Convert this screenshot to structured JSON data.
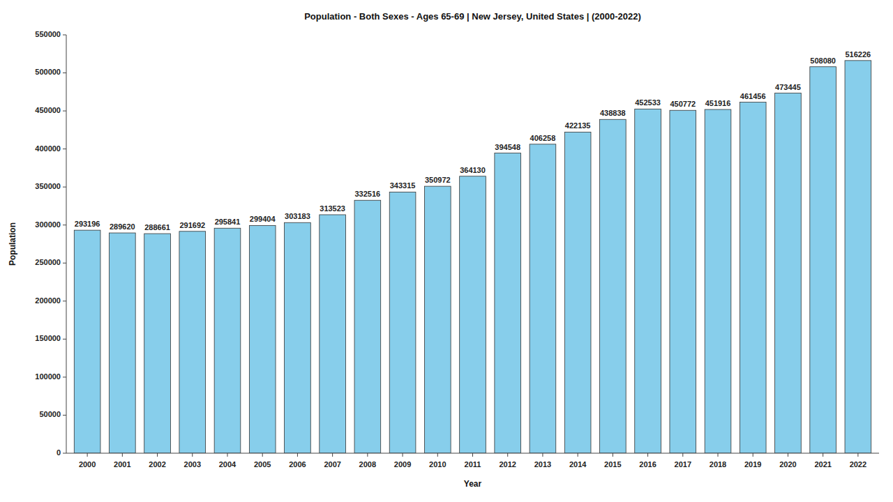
{
  "chart_data": {
    "type": "bar",
    "title": "Population - Both Sexes - Ages 65-69 | New Jersey, United States |  (2000-2022)",
    "xlabel": "Year",
    "ylabel": "Population",
    "categories": [
      "2000",
      "2001",
      "2002",
      "2003",
      "2004",
      "2005",
      "2006",
      "2007",
      "2008",
      "2009",
      "2010",
      "2011",
      "2012",
      "2013",
      "2014",
      "2015",
      "2016",
      "2017",
      "2018",
      "2019",
      "2020",
      "2021",
      "2022"
    ],
    "values": [
      293196,
      289620,
      288661,
      291692,
      295841,
      299404,
      303183,
      313523,
      332516,
      343315,
      350972,
      364130,
      394548,
      406258,
      422135,
      438838,
      452533,
      450772,
      451916,
      461456,
      473445,
      508080,
      516226
    ],
    "color": "#87CEEB",
    "ylim": [
      0,
      550000
    ],
    "yticks": [
      0,
      50000,
      100000,
      150000,
      200000,
      250000,
      300000,
      350000,
      400000,
      450000,
      500000,
      550000
    ],
    "grid": false,
    "data_labels": true
  }
}
